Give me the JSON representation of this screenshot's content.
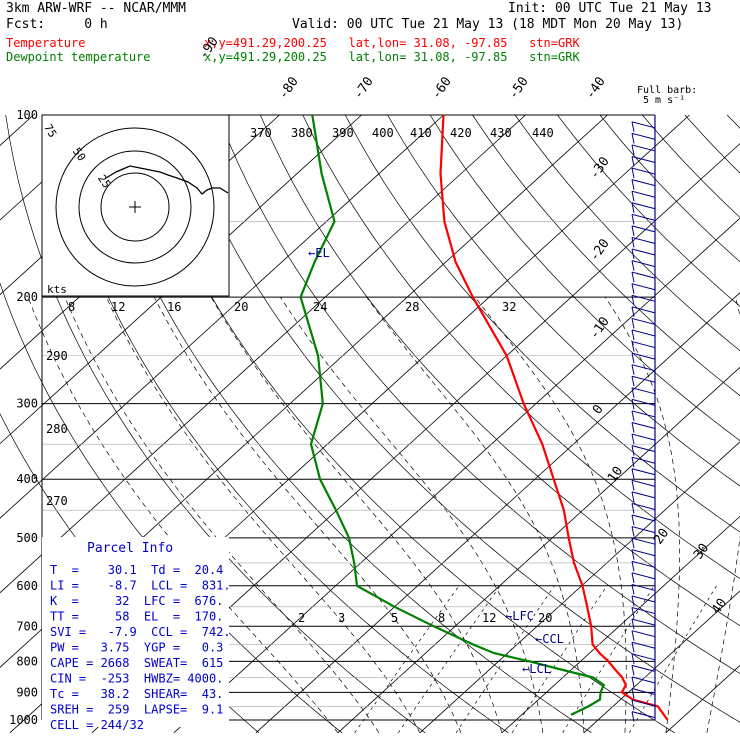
{
  "header": {
    "model": "3km ARW-WRF -- NCAR/MMM",
    "init": "Init: 00 UTC Tue 21 May 13",
    "fcst": "Fcst:     0 h",
    "valid": "Valid: 00 UTC Tue 21 May 13 (18 MDT Mon 20 May 13)",
    "temp_label": "Temperature",
    "dew_label": "Dewpoint temperature",
    "temp_info": "x,y=491.29,200.25   lat,lon= 31.08, -97.85   stn=GRK",
    "dew_info": "x,y=491.29,200.25   lat,lon= 31.08, -97.85   stn=GRK"
  },
  "wind_note": {
    "line1": "Full barb:",
    "line2": "5 m s⁻¹"
  },
  "colors": {
    "temperature": "#ff0000",
    "dewpoint": "#008000",
    "annotation": "#00008b",
    "parcel": "#0000cd"
  },
  "chart_data": {
    "type": "skew-t",
    "y_axis": "pressure (hPa), log scale",
    "pressure_ticks": [
      100,
      200,
      300,
      400,
      500,
      600,
      700,
      800,
      900,
      1000
    ],
    "isotherm_labels": [
      "-90",
      "-80",
      "-70",
      "-60",
      "-50",
      "-40",
      "-30",
      "-20",
      "-10",
      "0",
      "10",
      "20",
      "30",
      "40"
    ],
    "mixing_ratio_labels": [
      "2",
      "3",
      "5",
      "8",
      "12",
      "20"
    ],
    "theta_labels": [
      "270",
      "280",
      "290"
    ],
    "theta_e_labels": [
      "370",
      "380",
      "390",
      "400",
      "410",
      "420",
      "430",
      "440"
    ],
    "levels": [
      {
        "label": "EL"
      },
      {
        "label": "LFC"
      },
      {
        "label": "CCL"
      },
      {
        "label": "LCL"
      }
    ],
    "series": [
      {
        "name": "Temperature",
        "color": "#ff0000",
        "points": [
          {
            "p": 1000,
            "t": 28.5
          },
          {
            "p": 950,
            "t": 25.5
          },
          {
            "p": 925,
            "t": 21.5
          },
          {
            "p": 900,
            "t": 19.2
          },
          {
            "p": 875,
            "t": 18.7
          },
          {
            "p": 850,
            "t": 17.2
          },
          {
            "p": 825,
            "t": 15.3
          },
          {
            "p": 800,
            "t": 13.4
          },
          {
            "p": 775,
            "t": 11.2
          },
          {
            "p": 750,
            "t": 9.2
          },
          {
            "p": 700,
            "t": 6.6
          },
          {
            "p": 650,
            "t": 3.5
          },
          {
            "p": 600,
            "t": 0.1
          },
          {
            "p": 550,
            "t": -4.0
          },
          {
            "p": 500,
            "t": -8.0
          },
          {
            "p": 450,
            "t": -12.3
          },
          {
            "p": 400,
            "t": -17.7
          },
          {
            "p": 350,
            "t": -23.8
          },
          {
            "p": 300,
            "t": -31.5
          },
          {
            "p": 250,
            "t": -40.0
          },
          {
            "p": 200,
            "t": -52.0
          },
          {
            "p": 175,
            "t": -58.8
          },
          {
            "p": 150,
            "t": -65.6
          },
          {
            "p": 125,
            "t": -72.5
          },
          {
            "p": 100,
            "t": -80.0
          }
        ]
      },
      {
        "name": "Dewpoint temperature",
        "color": "#008000",
        "points": [
          {
            "p": 980,
            "t": 16.0
          },
          {
            "p": 950,
            "t": 17.0
          },
          {
            "p": 925,
            "t": 17.5
          },
          {
            "p": 900,
            "t": 16.6
          },
          {
            "p": 875,
            "t": 16.0
          },
          {
            "p": 850,
            "t": 13.6
          },
          {
            "p": 825,
            "t": 8.7
          },
          {
            "p": 800,
            "t": 3.8
          },
          {
            "p": 775,
            "t": -1.7
          },
          {
            "p": 750,
            "t": -5.4
          },
          {
            "p": 700,
            "t": -12.6
          },
          {
            "p": 650,
            "t": -20.0
          },
          {
            "p": 600,
            "t": -27.4
          },
          {
            "p": 550,
            "t": -30.8
          },
          {
            "p": 500,
            "t": -34.8
          },
          {
            "p": 450,
            "t": -40.1
          },
          {
            "p": 400,
            "t": -46.2
          },
          {
            "p": 350,
            "t": -52.0
          },
          {
            "p": 300,
            "t": -56.0
          },
          {
            "p": 250,
            "t": -63.0
          },
          {
            "p": 200,
            "t": -73.0
          },
          {
            "p": 175,
            "t": -76.0
          },
          {
            "p": 150,
            "t": -79.0
          },
          {
            "p": 125,
            "t": -87.0
          },
          {
            "p": 100,
            "t": -96.0
          }
        ]
      }
    ]
  },
  "hodograph": {
    "ring_labels": [
      "75",
      "50",
      "25"
    ],
    "speed_label": "kts",
    "speed_ticks": [
      "8",
      "12",
      "16",
      "20",
      "24",
      "28",
      "32"
    ]
  },
  "parcel_info": {
    "title": "Parcel Info",
    "rows": [
      "T  =    30.1  Td =  20.4",
      "LI =    -8.7  LCL =  831.",
      "K  =     32  LFC =  676.",
      "TT =     58  EL  =  170.",
      "SVI =   -7.9  CCL =  742.",
      "PW =   3.75  YGP =   0.3",
      "CAPE = 2668  SWEAT=  615",
      "CIN =  -253  HWBZ= 4000.",
      "Tc =   38.2  SHEAR=  43.",
      "SREH =  259  LAPSE=  9.1",
      "CELL = 244/32"
    ]
  }
}
